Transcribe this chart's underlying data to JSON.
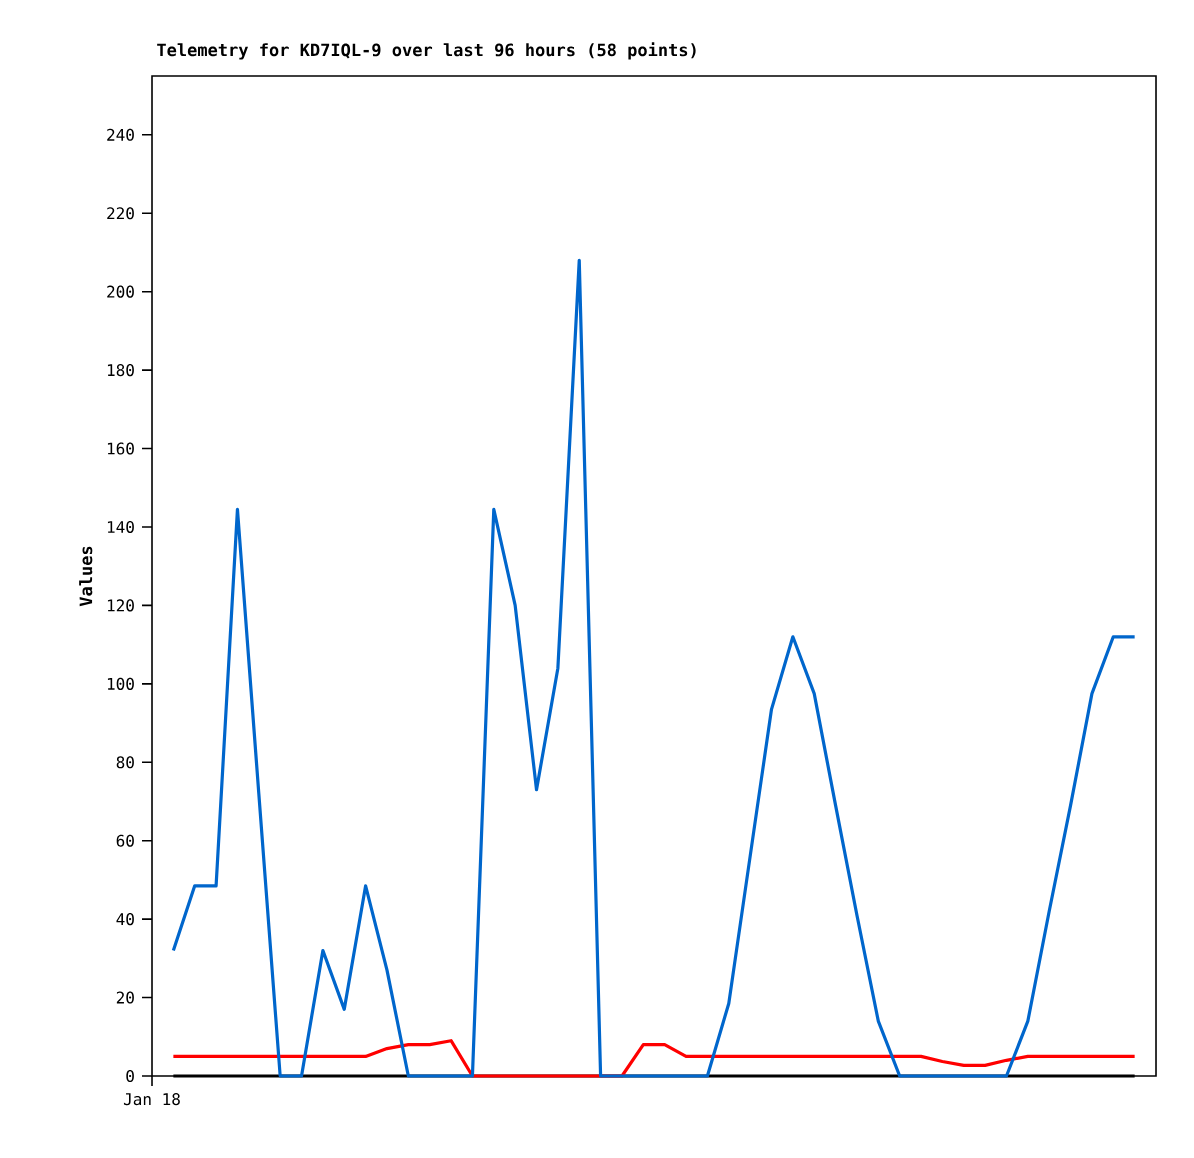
{
  "chart_data": {
    "type": "line",
    "title": "Telemetry for KD7IQL-9 over last 96 hours (58 points)",
    "ylabel": "Values",
    "categories": [
      "Jan 18",
      null,
      null,
      null,
      null,
      null,
      null,
      null,
      null,
      null,
      null,
      null,
      null,
      null,
      null,
      null,
      null,
      null,
      null,
      null,
      null,
      null,
      null,
      null,
      null,
      null,
      null,
      null,
      null,
      null,
      null,
      null,
      null,
      null,
      null,
      null,
      null,
      null,
      null,
      null,
      null,
      null,
      null,
      null,
      null,
      null,
      null,
      null
    ],
    "ylim": [
      0,
      255
    ],
    "yticks": [
      0,
      20,
      40,
      60,
      80,
      100,
      120,
      140,
      160,
      180,
      200,
      220,
      240
    ],
    "grid": false,
    "marker": "none",
    "line_style": "solid",
    "series": [
      {
        "color": "#000000",
        "values": [
          null,
          0,
          0,
          0,
          0,
          0,
          0,
          0,
          0,
          0,
          0,
          0,
          0,
          0,
          0,
          0,
          0,
          0,
          0,
          0,
          0,
          0,
          0,
          0,
          0,
          0,
          0,
          0,
          0,
          0,
          0,
          0,
          0,
          0,
          0,
          0,
          0,
          0,
          0,
          0,
          0,
          0,
          0,
          0,
          0,
          0,
          0,
          null
        ]
      },
      {
        "color": "#ff0000",
        "values": [
          null,
          5,
          5,
          5,
          5,
          5,
          5,
          5,
          5,
          5,
          5,
          7,
          8,
          8,
          9,
          0,
          0,
          0,
          0,
          0,
          0,
          0,
          0,
          8,
          8,
          5,
          5,
          5,
          5,
          5,
          5,
          5,
          5,
          5,
          5,
          5,
          5,
          3.7,
          2.7,
          2.7,
          4,
          5,
          5,
          5,
          5,
          5,
          5,
          null
        ]
      },
      {
        "color": "#0066cc",
        "values": [
          null,
          32,
          48.5,
          48.5,
          144.5,
          72,
          0,
          0,
          32,
          17,
          48.5,
          27,
          0,
          0,
          0,
          0,
          144.5,
          120,
          73,
          104,
          208,
          0,
          0,
          0,
          0,
          0,
          0,
          18.5,
          56,
          93.5,
          112,
          97.5,
          69,
          41,
          14,
          0,
          0,
          0,
          0,
          0,
          0,
          14,
          42,
          69,
          97.5,
          112,
          112,
          null
        ]
      }
    ]
  }
}
